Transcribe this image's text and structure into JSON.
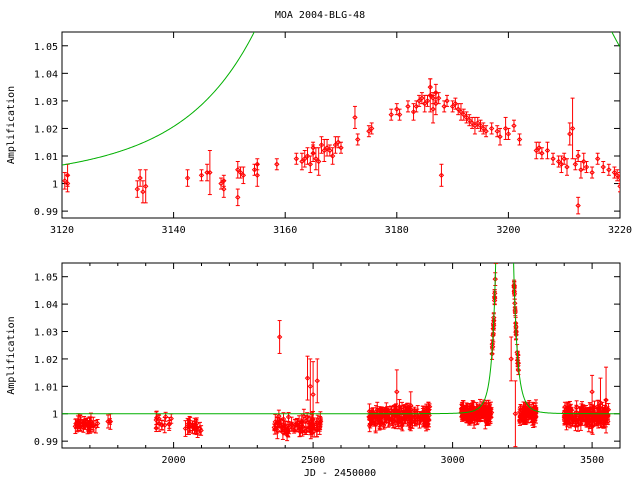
{
  "title": "MOA 2004-BLG-48",
  "colors": {
    "data": "#ff0000",
    "model": "#00b000",
    "axes": "#000000"
  },
  "chart_data": [
    {
      "type": "scatter",
      "ylabel": "Amplification",
      "xlim": [
        3120,
        3220
      ],
      "ylim": [
        0.9875,
        1.055
      ],
      "xticks": [
        "3120",
        "3140",
        "3160",
        "3180",
        "3200",
        "3220"
      ],
      "yticks": [
        "0.99",
        "1",
        "1.01",
        "1.02",
        "1.03",
        "1.04",
        "1.05"
      ],
      "model": {
        "t0": 3186.5,
        "u0": 0.9,
        "tE": 18,
        "baseline": 1.0
      },
      "points": [
        [
          3120.5,
          1.001,
          0.003
        ],
        [
          3121,
          1.003,
          0.004
        ],
        [
          3121,
          1.0,
          0.003
        ],
        [
          3133.5,
          0.998,
          0.003
        ],
        [
          3134,
          1.002,
          0.003
        ],
        [
          3134.5,
          0.997,
          0.004
        ],
        [
          3135,
          0.999,
          0.006
        ],
        [
          3142.5,
          1.002,
          0.003
        ],
        [
          3145,
          1.003,
          0.002
        ],
        [
          3146,
          1.004,
          0.003
        ],
        [
          3146.5,
          1.004,
          0.008
        ],
        [
          3148.5,
          1.0,
          0.002
        ],
        [
          3149,
          0.998,
          0.003
        ],
        [
          3149,
          1.001,
          0.002
        ],
        [
          3151.5,
          1.005,
          0.003
        ],
        [
          3151.5,
          0.995,
          0.003
        ],
        [
          3152,
          1.004,
          0.002
        ],
        [
          3152.5,
          1.003,
          0.003
        ],
        [
          3154.5,
          1.005,
          0.002
        ],
        [
          3155,
          1.003,
          0.004
        ],
        [
          3155,
          1.007,
          0.002
        ],
        [
          3158.5,
          1.007,
          0.002
        ],
        [
          3162,
          1.009,
          0.002
        ],
        [
          3163,
          1.008,
          0.003
        ],
        [
          3163.5,
          1.009,
          0.003
        ],
        [
          3164,
          1.01,
          0.003
        ],
        [
          3164.5,
          1.007,
          0.003
        ],
        [
          3165,
          1.011,
          0.003
        ],
        [
          3165,
          1.013,
          0.002
        ],
        [
          3165.5,
          1.009,
          0.004
        ],
        [
          3166,
          1.008,
          0.005
        ],
        [
          3166.5,
          1.014,
          0.003
        ],
        [
          3167,
          1.012,
          0.004
        ],
        [
          3167.5,
          1.013,
          0.003
        ],
        [
          3168,
          1.012,
          0.002
        ],
        [
          3168.5,
          1.01,
          0.003
        ],
        [
          3169,
          1.014,
          0.003
        ],
        [
          3169.5,
          1.015,
          0.002
        ],
        [
          3170,
          1.013,
          0.002
        ],
        [
          3172.5,
          1.024,
          0.004
        ],
        [
          3173,
          1.016,
          0.002
        ],
        [
          3175,
          1.019,
          0.002
        ],
        [
          3175.5,
          1.02,
          0.002
        ],
        [
          3179,
          1.025,
          0.002
        ],
        [
          3180,
          1.027,
          0.002
        ],
        [
          3180.5,
          1.025,
          0.002
        ],
        [
          3182,
          1.028,
          0.002
        ],
        [
          3183,
          1.026,
          0.003
        ],
        [
          3183.5,
          1.028,
          0.002
        ],
        [
          3184,
          1.03,
          0.002
        ],
        [
          3184.5,
          1.031,
          0.002
        ],
        [
          3185,
          1.029,
          0.003
        ],
        [
          3185.5,
          1.03,
          0.002
        ],
        [
          3186,
          1.032,
          0.006
        ],
        [
          3186,
          1.035,
          0.003
        ],
        [
          3186.5,
          1.031,
          0.002
        ],
        [
          3186.5,
          1.027,
          0.005
        ],
        [
          3187,
          1.033,
          0.003
        ],
        [
          3187,
          1.029,
          0.004
        ],
        [
          3187.5,
          1.031,
          0.002
        ],
        [
          3188,
          1.003,
          0.004
        ],
        [
          3188.5,
          1.028,
          0.002
        ],
        [
          3189,
          1.03,
          0.002
        ],
        [
          3190,
          1.028,
          0.002
        ],
        [
          3190.5,
          1.029,
          0.002
        ],
        [
          3191,
          1.027,
          0.002
        ],
        [
          3191.5,
          1.026,
          0.003
        ],
        [
          3192,
          1.025,
          0.002
        ],
        [
          3192.5,
          1.024,
          0.002
        ],
        [
          3193,
          1.023,
          0.002
        ],
        [
          3193.5,
          1.022,
          0.002
        ],
        [
          3194,
          1.021,
          0.003
        ],
        [
          3194.5,
          1.022,
          0.002
        ],
        [
          3195,
          1.021,
          0.002
        ],
        [
          3195.5,
          1.02,
          0.002
        ],
        [
          3196,
          1.019,
          0.002
        ],
        [
          3197,
          1.02,
          0.002
        ],
        [
          3198,
          1.019,
          0.002
        ],
        [
          3198.5,
          1.017,
          0.003
        ],
        [
          3199.5,
          1.02,
          0.004
        ],
        [
          3200,
          1.018,
          0.002
        ],
        [
          3201,
          1.021,
          0.002
        ],
        [
          3202,
          1.016,
          0.002
        ],
        [
          3205,
          1.012,
          0.003
        ],
        [
          3205.5,
          1.013,
          0.002
        ],
        [
          3206,
          1.011,
          0.002
        ],
        [
          3207,
          1.012,
          0.003
        ],
        [
          3208,
          1.009,
          0.002
        ],
        [
          3209,
          1.008,
          0.002
        ],
        [
          3209.5,
          1.007,
          0.003
        ],
        [
          3210,
          1.009,
          0.002
        ],
        [
          3210.5,
          1.006,
          0.003
        ],
        [
          3211,
          1.018,
          0.004
        ],
        [
          3211.5,
          1.02,
          0.011
        ],
        [
          3212,
          1.007,
          0.002
        ],
        [
          3212.5,
          1.01,
          0.002
        ],
        [
          3213,
          1.005,
          0.003
        ],
        [
          3213.5,
          1.008,
          0.003
        ],
        [
          3214,
          1.006,
          0.002
        ],
        [
          3212.5,
          0.992,
          0.003
        ],
        [
          3215,
          1.004,
          0.002
        ],
        [
          3216,
          1.009,
          0.002
        ],
        [
          3217,
          1.006,
          0.002
        ],
        [
          3218,
          1.005,
          0.002
        ],
        [
          3219,
          1.004,
          0.002
        ],
        [
          3219.5,
          1.003,
          0.002
        ],
        [
          3220,
          1.002,
          0.002
        ],
        [
          3220,
          0.999,
          0.002
        ]
      ]
    },
    {
      "type": "scatter",
      "xlabel": "JD - 2450000",
      "ylabel": "Amplification",
      "xlim": [
        1600,
        3600
      ],
      "ylim": [
        0.9875,
        1.055
      ],
      "xticks": [
        "2000",
        "2500",
        "3000",
        "3500"
      ],
      "yticks": [
        "0.99",
        "1",
        "1.01",
        "1.02",
        "1.03",
        "1.04",
        "1.05"
      ],
      "model": {
        "t0": 3186.5,
        "u0": 0.9,
        "tE": 18,
        "baseline": 1.0
      },
      "segments": [
        {
          "range": [
            1640,
            1730
          ],
          "mean": 0.996,
          "spread": 0.002,
          "count": 30
        },
        {
          "range": [
            1760,
            1780
          ],
          "mean": 0.997,
          "spread": 0.001,
          "count": 3
        },
        {
          "range": [
            1930,
            2010
          ],
          "mean": 0.997,
          "spread": 0.003,
          "count": 12
        },
        {
          "range": [
            2040,
            2100
          ],
          "mean": 0.995,
          "spread": 0.002,
          "count": 20
        },
        {
          "range": [
            2360,
            2530
          ],
          "mean": 0.996,
          "spread": 0.004,
          "count": 70
        },
        {
          "range": [
            2700,
            2920
          ],
          "mean": 0.999,
          "spread": 0.004,
          "count": 150
        },
        {
          "range": [
            3030,
            3300
          ],
          "mean": 1.0,
          "spread": 0.003,
          "count": 300
        },
        {
          "range": [
            3400,
            3560
          ],
          "mean": 0.999,
          "spread": 0.004,
          "count": 150
        }
      ],
      "outliers": [
        [
          2380,
          1.028,
          0.006
        ],
        [
          2480,
          1.013,
          0.008
        ],
        [
          2490,
          1.01,
          0.01
        ],
        [
          2500,
          1.007,
          0.012
        ],
        [
          2515,
          1.012,
          0.008
        ],
        [
          2800,
          1.008,
          0.008
        ],
        [
          2850,
          1.003,
          0.005
        ],
        [
          3210,
          1.02,
          0.008
        ],
        [
          3225,
          1.0,
          0.012
        ],
        [
          3500,
          1.008,
          0.006
        ],
        [
          3530,
          1.004,
          0.009
        ],
        [
          3550,
          1.005,
          0.012
        ]
      ]
    }
  ]
}
